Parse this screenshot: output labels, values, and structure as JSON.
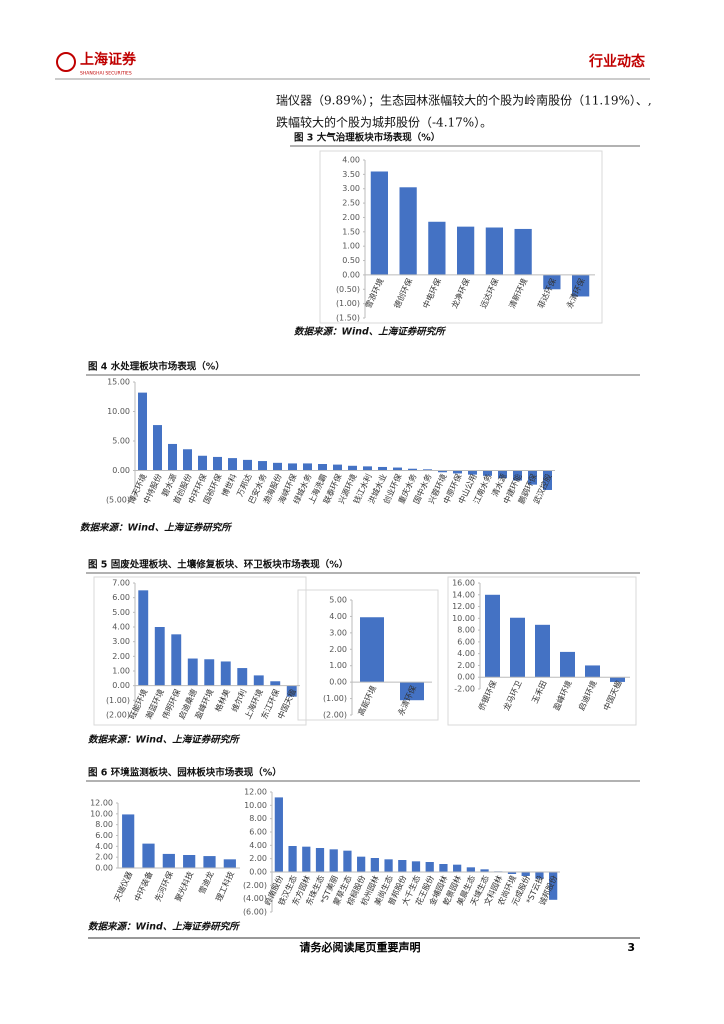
{
  "header": {
    "brand": "上海证券",
    "brand_en": "SHANGHAI SECURITIES",
    "section": "行业动态"
  },
  "body": {
    "lines": [
      "瑞仪器（9.89%）；生态园林涨幅较大的个股为岭南股份（11.19%）、,",
      "跌幅较大的个股为城邦股份（-4.17%）。"
    ]
  },
  "figures": [
    {
      "title": "图 3 大气治理板块市场表现（%）",
      "source": "数据来源：Wind、上海证券研究所"
    },
    {
      "title": "图 4 水处理板块市场表现（%）",
      "source": "数据来源：Wind、上海证券研究所"
    },
    {
      "title": "图 5 固废处理板块、土壤修复板块、环卫板块市场表现（%）",
      "source": "数据来源：Wind、上海证券研究所"
    },
    {
      "title": "图 6 环境监测板块、园林板块市场表现（%）",
      "source": "数据来源：Wind、上海证券研究所"
    }
  ],
  "footer": {
    "disclaimer": "请务必阅读尾页重要声明",
    "page": "3"
  },
  "chart_data": [
    {
      "type": "bar",
      "color": "#4472c4",
      "grid": false,
      "categories": [
        "雪浪环境",
        "德创环保",
        "中电环保",
        "龙净环保",
        "远达环保",
        "清新环境",
        "菲达环保",
        "永清环保"
      ],
      "values": [
        3.6,
        3.05,
        1.85,
        1.68,
        1.65,
        1.6,
        -0.5,
        -0.75
      ],
      "ylim": [
        -1.5,
        4
      ],
      "yticks": [
        {
          "value": 4,
          "label": "4.00"
        },
        {
          "value": 3.5,
          "label": "3.50"
        },
        {
          "value": 3,
          "label": "3.00"
        },
        {
          "value": 2.5,
          "label": "2.50"
        },
        {
          "value": 2,
          "label": "2.00"
        },
        {
          "value": 1.5,
          "label": "1.50"
        },
        {
          "value": 1,
          "label": "1.00"
        },
        {
          "value": 0.5,
          "label": "0.50"
        },
        {
          "value": 0,
          "label": "0.00"
        },
        {
          "value": -0.5,
          "label": "(0.50)"
        },
        {
          "value": -1,
          "label": "(1.00)"
        },
        {
          "value": -1.5,
          "label": "(1.50)"
        }
      ]
    },
    {
      "type": "bar",
      "color": "#4472c4",
      "grid": false,
      "categories": [
        "博天环境",
        "中持股份",
        "碧水源",
        "首创股份",
        "中环环保",
        "国祯环保",
        "博世科",
        "万邦达",
        "巴安水务",
        "渤海股份",
        "海峡环保",
        "绿城水务",
        "上海洗霸",
        "联泰环保",
        "兴源环境",
        "钱江水利",
        "洪城水业",
        "创业环保",
        "重庆水务",
        "国中水务",
        "兴蓉环境",
        "中原环保",
        "中山公用",
        "江南水务",
        "清水源",
        "中建环能",
        "鹏鹞环保",
        "武汉控股"
      ],
      "values": [
        13.2,
        7.7,
        4.5,
        3.6,
        2.5,
        2.3,
        2.1,
        1.8,
        1.6,
        1.3,
        1.2,
        1.2,
        1.1,
        1.0,
        0.8,
        0.7,
        0.6,
        0.5,
        0.3,
        0.2,
        -0.3,
        -0.5,
        -0.7,
        -0.9,
        -1.3,
        -1.7,
        -2.4,
        -3.3
      ],
      "ylim": [
        -5,
        15
      ],
      "yticks": [
        {
          "value": 15,
          "label": "15.00"
        },
        {
          "value": 10,
          "label": "10.00"
        },
        {
          "value": 5,
          "label": "5.00"
        },
        {
          "value": 0,
          "label": "0.00"
        },
        {
          "value": -5,
          "label": "(5.00)"
        }
      ]
    },
    {
      "type": "bar",
      "color": "#4472c4",
      "grid": false,
      "categories": [
        "旺能环境",
        "瀚蓝环境",
        "伟明环保",
        "启迪桑德",
        "盈峰环境",
        "格林美",
        "维尔利",
        "上海环境",
        "东江环保",
        "中国天楹"
      ],
      "values": [
        6.5,
        4.0,
        3.5,
        1.85,
        1.8,
        1.65,
        1.2,
        0.7,
        0.3,
        -0.75
      ],
      "ylim": [
        -2,
        7
      ],
      "yticks": [
        {
          "value": 7,
          "label": "7.00"
        },
        {
          "value": 6,
          "label": "6.00"
        },
        {
          "value": 5,
          "label": "5.00"
        },
        {
          "value": 4,
          "label": "4.00"
        },
        {
          "value": 3,
          "label": "3.00"
        },
        {
          "value": 2,
          "label": "2.00"
        },
        {
          "value": 1,
          "label": "1.00"
        },
        {
          "value": 0,
          "label": "0.00"
        },
        {
          "value": -1,
          "label": "(1.00)"
        },
        {
          "value": -2,
          "label": "(2.00)"
        }
      ]
    },
    {
      "type": "bar",
      "color": "#4472c4",
      "grid": false,
      "categories": [
        "高能环境",
        "永清环保"
      ],
      "values": [
        3.95,
        -1.1
      ],
      "ylim": [
        -2,
        5
      ],
      "yticks": [
        {
          "value": 5,
          "label": "5.00"
        },
        {
          "value": 4,
          "label": "4.00"
        },
        {
          "value": 3,
          "label": "3.00"
        },
        {
          "value": 2,
          "label": "2.00"
        },
        {
          "value": 1,
          "label": "1.00"
        },
        {
          "value": 0,
          "label": "0.00"
        },
        {
          "value": -1,
          "label": "(1.00)"
        },
        {
          "value": -2,
          "label": "(2.00)"
        }
      ]
    },
    {
      "type": "bar",
      "color": "#4472c4",
      "grid": false,
      "categories": [
        "侨银环保",
        "龙马环卫",
        "玉禾田",
        "盈峰环境",
        "启迪环境",
        "中国天楹"
      ],
      "values": [
        14.0,
        10.1,
        8.9,
        4.3,
        2.0,
        -0.8
      ],
      "ylim": [
        -2,
        16
      ],
      "yticks": [
        {
          "value": 16,
          "label": "16.00"
        },
        {
          "value": 14,
          "label": "14.00"
        },
        {
          "value": 12,
          "label": "12.00"
        },
        {
          "value": 10,
          "label": "10.00"
        },
        {
          "value": 8,
          "label": "8.00"
        },
        {
          "value": 6,
          "label": "6.00"
        },
        {
          "value": 4,
          "label": "4.00"
        },
        {
          "value": 2,
          "label": "2.00"
        },
        {
          "value": 0,
          "label": "0.00"
        },
        {
          "value": -2,
          "label": "-2.00"
        }
      ]
    },
    {
      "type": "bar",
      "color": "#4472c4",
      "grid": false,
      "categories": [
        "天瑞仪器",
        "中环装备",
        "先河环保",
        "聚光科技",
        "雪迪龙",
        "理工科技"
      ],
      "values": [
        9.89,
        4.5,
        2.6,
        2.4,
        2.2,
        1.6
      ],
      "ylim": [
        0,
        12
      ],
      "yticks": [
        {
          "value": 12,
          "label": "12.00"
        },
        {
          "value": 10,
          "label": "10.00"
        },
        {
          "value": 8,
          "label": "8.00"
        },
        {
          "value": 6,
          "label": "6.00"
        },
        {
          "value": 4,
          "label": "4.00"
        },
        {
          "value": 2,
          "label": "2.00"
        },
        {
          "value": 0,
          "label": "0.00"
        }
      ]
    },
    {
      "type": "bar",
      "color": "#4472c4",
      "grid": false,
      "categories": [
        "岭南股份",
        "铁汉生态",
        "东方园林",
        "东珠生态",
        "*ST美丽",
        "蒙草生态",
        "棕榈股份",
        "杭州园林",
        "美尚生态",
        "普邦股份",
        "大千生态",
        "花王股份",
        "金埔园林",
        "乾景园林",
        "美晨生态",
        "天域生态",
        "文科园林",
        "农尚环境",
        "元成股份",
        "*ST云投",
        "诚邦股份"
      ],
      "values": [
        11.19,
        3.9,
        3.8,
        3.6,
        3.4,
        3.2,
        2.3,
        2.1,
        1.9,
        1.8,
        1.6,
        1.5,
        1.2,
        1.1,
        0.7,
        0.4,
        0.1,
        -0.3,
        -0.6,
        -1.0,
        -4.17
      ],
      "ylim": [
        -6,
        12
      ],
      "yticks": [
        {
          "value": 12,
          "label": "12.00"
        },
        {
          "value": 10,
          "label": "10.00"
        },
        {
          "value": 8,
          "label": "8.00"
        },
        {
          "value": 6,
          "label": "6.00"
        },
        {
          "value": 4,
          "label": "4.00"
        },
        {
          "value": 2,
          "label": "2.00"
        },
        {
          "value": 0,
          "label": "0.00"
        },
        {
          "value": -2,
          "label": "(2.00)"
        },
        {
          "value": -4,
          "label": "(4.00)"
        },
        {
          "value": -6,
          "label": "(6.00)"
        }
      ]
    }
  ]
}
